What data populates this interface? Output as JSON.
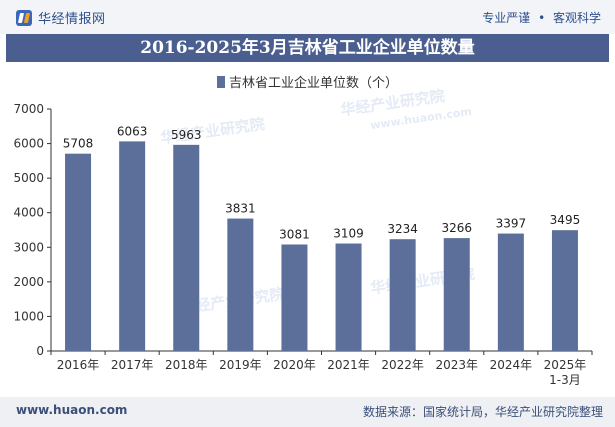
{
  "header": {
    "site_name": "华经情报网",
    "tagline_left": "专业严谨",
    "tagline_dot": "•",
    "tagline_right": "客观科学"
  },
  "chart_title": "2016-2025年3月吉林省工业企业单位数量",
  "footer": {
    "url": "www.huaon.com",
    "source": "数据来源：国家统计局，华经产业研究院整理"
  },
  "watermark": {
    "brand": "华经产业研究院",
    "url": "www.huaon.com"
  },
  "colors": {
    "bar": "#5b6f9a",
    "title_bg": "#4a5f8f",
    "axis": "#333333"
  },
  "chart_data": {
    "type": "bar",
    "categories": [
      "2016年",
      "2017年",
      "2018年",
      "2019年",
      "2020年",
      "2021年",
      "2022年",
      "2023年",
      "2024年",
      "2025年\n1-3月"
    ],
    "series": [
      {
        "name": "吉林省工业企业单位数（个）",
        "values": [
          5708,
          6063,
          5963,
          3831,
          3081,
          3109,
          3234,
          3266,
          3397,
          3495
        ]
      }
    ],
    "ylim": [
      0,
      7000
    ],
    "yticks": [
      0,
      1000,
      2000,
      3000,
      4000,
      5000,
      6000,
      7000
    ],
    "grid": false,
    "legend": "top-center",
    "data_labels": true
  }
}
